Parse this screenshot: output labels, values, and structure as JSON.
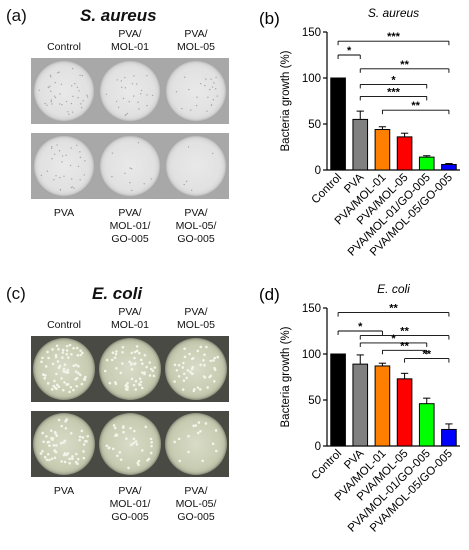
{
  "panels": {
    "a": {
      "letter": "(a)",
      "title": "S. aureus",
      "labels": [
        {
          "id": "control",
          "text": "Control"
        },
        {
          "id": "mol01",
          "text": "PVA/\nMOL-01"
        },
        {
          "id": "mol05",
          "text": "PVA/\nMOL-05"
        },
        {
          "id": "pva",
          "text": "PVA"
        },
        {
          "id": "mol01go",
          "text": "PVA/\nMOL-01/\nGO-005"
        },
        {
          "id": "mol05go",
          "text": "PVA/\nMOL-05/\nGO-005"
        }
      ]
    },
    "c": {
      "letter": "(c)",
      "title": "E. coli",
      "labels": [
        {
          "id": "control",
          "text": "Control"
        },
        {
          "id": "mol01",
          "text": "PVA/\nMOL-01"
        },
        {
          "id": "mol05",
          "text": "PVA/\nMOL-05"
        },
        {
          "id": "pva",
          "text": "PVA"
        },
        {
          "id": "mol01go",
          "text": "PVA/\nMOL-01/\nGO-005"
        },
        {
          "id": "mol05go",
          "text": "PVA/\nMOL-05/\nGO-005"
        }
      ]
    }
  },
  "plate_colors": {
    "s_aureus": "#e1e1e1",
    "e_coli": "#c8ccb2"
  },
  "chart_data": [
    {
      "panel": "(b)",
      "type": "bar",
      "title": "S. aureus",
      "ylabel": "Bacteria growth (%)",
      "xlabel": "",
      "ylim": [
        0,
        150
      ],
      "yticks": [
        0,
        50,
        100,
        150
      ],
      "categories": [
        "Control",
        "PVA",
        "PVA/MOL-01",
        "PVA/MOL-05",
        "PVA/MOL-01/GO-005",
        "PVA/MOL-05/GO-005"
      ],
      "values": [
        100,
        55,
        44,
        36,
        14,
        6
      ],
      "errors": [
        0,
        9,
        3,
        4,
        1.5,
        1
      ],
      "colors": [
        "#000000",
        "#808080",
        "#ff8000",
        "#ff0000",
        "#00ff00",
        "#0000ff"
      ],
      "significance": [
        {
          "from": 0,
          "to": 1,
          "label": "*",
          "y": 125,
          "group_to": [
            1
          ]
        },
        {
          "from": 0,
          "to": 5,
          "label": "***",
          "y": 140,
          "group_to": [
            2,
            3,
            4,
            5
          ]
        },
        {
          "from": 1,
          "to": 5,
          "label": "**",
          "y": 110,
          "group_to": [
            4,
            5
          ]
        },
        {
          "from": 1,
          "to": 4,
          "label": "*",
          "y": 93,
          "group_to": [
            4
          ]
        },
        {
          "from": 1,
          "to": 4,
          "label": "***",
          "y": 80,
          "group_to": [
            4
          ]
        },
        {
          "from": 2,
          "to": 5,
          "label": "**",
          "y": 65,
          "group_to": [
            5
          ]
        }
      ]
    },
    {
      "panel": "(d)",
      "type": "bar",
      "title": "E. coli",
      "ylabel": "Bacteria growth (%)",
      "xlabel": "",
      "ylim": [
        0,
        150
      ],
      "yticks": [
        0,
        50,
        100,
        150
      ],
      "categories": [
        "Control",
        "PVA",
        "PVA/MOL-01",
        "PVA/MOL-05",
        "PVA/MOL-01/GO-005",
        "PVA/MOL-05/GO-005"
      ],
      "values": [
        100,
        89,
        87,
        73,
        46,
        18
      ],
      "errors": [
        0,
        10,
        3,
        6,
        6,
        6
      ],
      "colors": [
        "#000000",
        "#808080",
        "#ff8000",
        "#ff0000",
        "#00ff00",
        "#0000ff"
      ],
      "significance": [
        {
          "from": 0,
          "to": 5,
          "label": "**",
          "y": 145,
          "group_to": [
            4,
            5
          ]
        },
        {
          "from": 0,
          "to": 2,
          "label": "*",
          "y": 125,
          "group_to": [
            2
          ]
        },
        {
          "from": 1,
          "to": 5,
          "label": "**",
          "y": 120,
          "group_to": [
            4,
            5
          ]
        },
        {
          "from": 1,
          "to": 4,
          "label": "*",
          "y": 112,
          "group_to": [
            4
          ]
        },
        {
          "from": 2,
          "to": 4,
          "label": "**",
          "y": 104,
          "group_to": [
            4
          ]
        },
        {
          "from": 3,
          "to": 5,
          "label": "**",
          "y": 95,
          "group_to": [
            5
          ]
        }
      ]
    }
  ]
}
